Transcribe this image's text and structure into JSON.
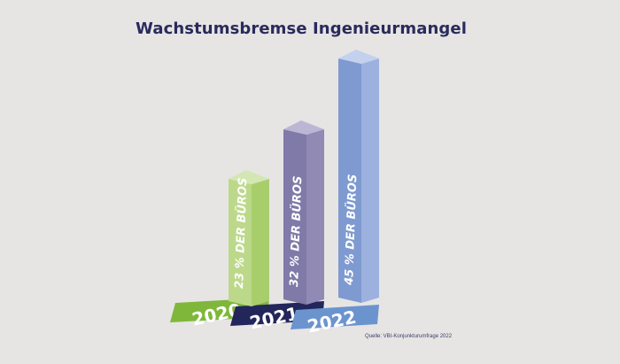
{
  "chart_data": {
    "type": "bar",
    "title": "Wachstumsbremse Ingenieurmangel",
    "categories": [
      "2020",
      "2021",
      "2022"
    ],
    "values": [
      23,
      32,
      45
    ],
    "bar_labels": [
      "23 % DER BÜROS",
      "32 % DER BÜROS",
      "45 % DER BÜROS"
    ],
    "xlabel": "",
    "ylabel": "",
    "grid": false,
    "legend": "none",
    "source": "Quelle: VBI-Konjunkturumfrage 2022",
    "colors": {
      "bar_front": [
        "#bcd98a",
        "#7f7aa8",
        "#7e9ad0"
      ],
      "bar_side": [
        "#a8ce6c",
        "#908ab5",
        "#9db1de"
      ],
      "bar_top": [
        "#d3e7b3",
        "#bcb6d5",
        "#c3d1ee"
      ],
      "plate": [
        "#7fb73b",
        "#23265a",
        "#6b94cf"
      ],
      "plate_side": [
        "#6aa22b",
        "#181a45",
        "#5a82bf"
      ],
      "title": "#2a2a5c",
      "background": "#e6e5e4"
    }
  }
}
